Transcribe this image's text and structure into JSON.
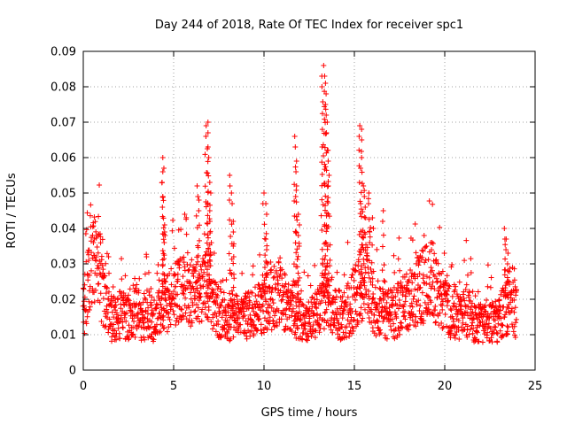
{
  "chart_data": {
    "type": "scatter",
    "title": "Day 244 of 2018, Rate Of TEC Index for receiver spc1",
    "xlabel": "GPS time / hours",
    "ylabel": "ROTI / TECUs",
    "xlim": [
      0,
      25
    ],
    "ylim": [
      0,
      0.09
    ],
    "xticks": [
      "0",
      "5",
      "10",
      "15",
      "20",
      "25"
    ],
    "xtick_values": [
      0,
      5,
      10,
      15,
      20,
      25
    ],
    "yticks": [
      "0",
      "0.01",
      "0.02",
      "0.03",
      "0.04",
      "0.05",
      "0.06",
      "0.07",
      "0.08",
      "0.09"
    ],
    "ytick_values": [
      0,
      0.01,
      0.02,
      0.03,
      0.04,
      0.05,
      0.06,
      0.07,
      0.08,
      0.09
    ],
    "grid": true,
    "marker": "+",
    "color": "#ff0000",
    "series": [
      {
        "x": [
          0.0,
          0.4,
          0.8,
          1.2,
          1.6,
          2.0,
          2.4,
          2.8,
          3.2,
          3.6,
          4.0,
          4.4,
          4.8,
          5.2,
          5.6,
          6.0,
          6.4,
          6.8,
          7.2,
          7.6,
          8.0,
          8.4,
          8.8,
          9.2,
          9.6,
          10.0,
          10.4,
          10.8,
          11.2,
          11.6,
          12.0,
          12.4,
          12.8,
          13.2,
          13.6,
          14.0,
          14.4,
          14.8,
          15.2,
          15.6,
          16.0,
          16.4,
          16.8,
          17.2,
          17.6,
          18.0,
          18.4,
          18.8,
          19.2,
          19.6,
          20.0,
          20.4,
          20.8,
          21.2,
          21.6,
          22.0,
          22.4,
          22.8,
          23.2,
          23.6,
          24.0
        ],
        "y": [
          0.016,
          0.028,
          0.032,
          0.018,
          0.014,
          0.016,
          0.015,
          0.017,
          0.015,
          0.016,
          0.014,
          0.018,
          0.02,
          0.022,
          0.024,
          0.022,
          0.021,
          0.028,
          0.018,
          0.016,
          0.014,
          0.015,
          0.014,
          0.016,
          0.017,
          0.019,
          0.02,
          0.021,
          0.019,
          0.016,
          0.014,
          0.013,
          0.015,
          0.018,
          0.022,
          0.016,
          0.015,
          0.018,
          0.022,
          0.028,
          0.019,
          0.016,
          0.015,
          0.016,
          0.018,
          0.02,
          0.022,
          0.024,
          0.026,
          0.023,
          0.018,
          0.016,
          0.015,
          0.017,
          0.014,
          0.013,
          0.014,
          0.013,
          0.016,
          0.018,
          0.016
        ]
      },
      {
        "x": [
          4.4,
          4.4,
          4.4,
          4.5,
          4.5,
          6.3,
          6.4,
          6.8,
          6.9,
          6.9,
          7.0,
          7.0,
          8.1,
          8.2,
          8.3,
          8.3,
          10.0,
          10.1,
          10.1,
          10.2,
          11.7,
          11.8,
          11.8,
          11.9,
          11.9,
          13.2,
          13.3,
          13.4,
          13.4,
          13.5,
          13.5,
          13.6,
          15.3,
          15.4,
          15.4,
          15.5,
          15.6,
          15.8,
          16.0,
          16.6,
          23.3,
          23.4,
          23.5,
          23.5
        ],
        "y": [
          0.06,
          0.056,
          0.049,
          0.041,
          0.039,
          0.052,
          0.048,
          0.069,
          0.07,
          0.063,
          0.053,
          0.045,
          0.055,
          0.05,
          0.042,
          0.035,
          0.05,
          0.047,
          0.037,
          0.03,
          0.066,
          0.059,
          0.052,
          0.044,
          0.038,
          0.083,
          0.086,
          0.081,
          0.075,
          0.07,
          0.062,
          0.055,
          0.069,
          0.068,
          0.06,
          0.052,
          0.046,
          0.05,
          0.043,
          0.045,
          0.04,
          0.037,
          0.033,
          0.028
        ]
      }
    ]
  }
}
